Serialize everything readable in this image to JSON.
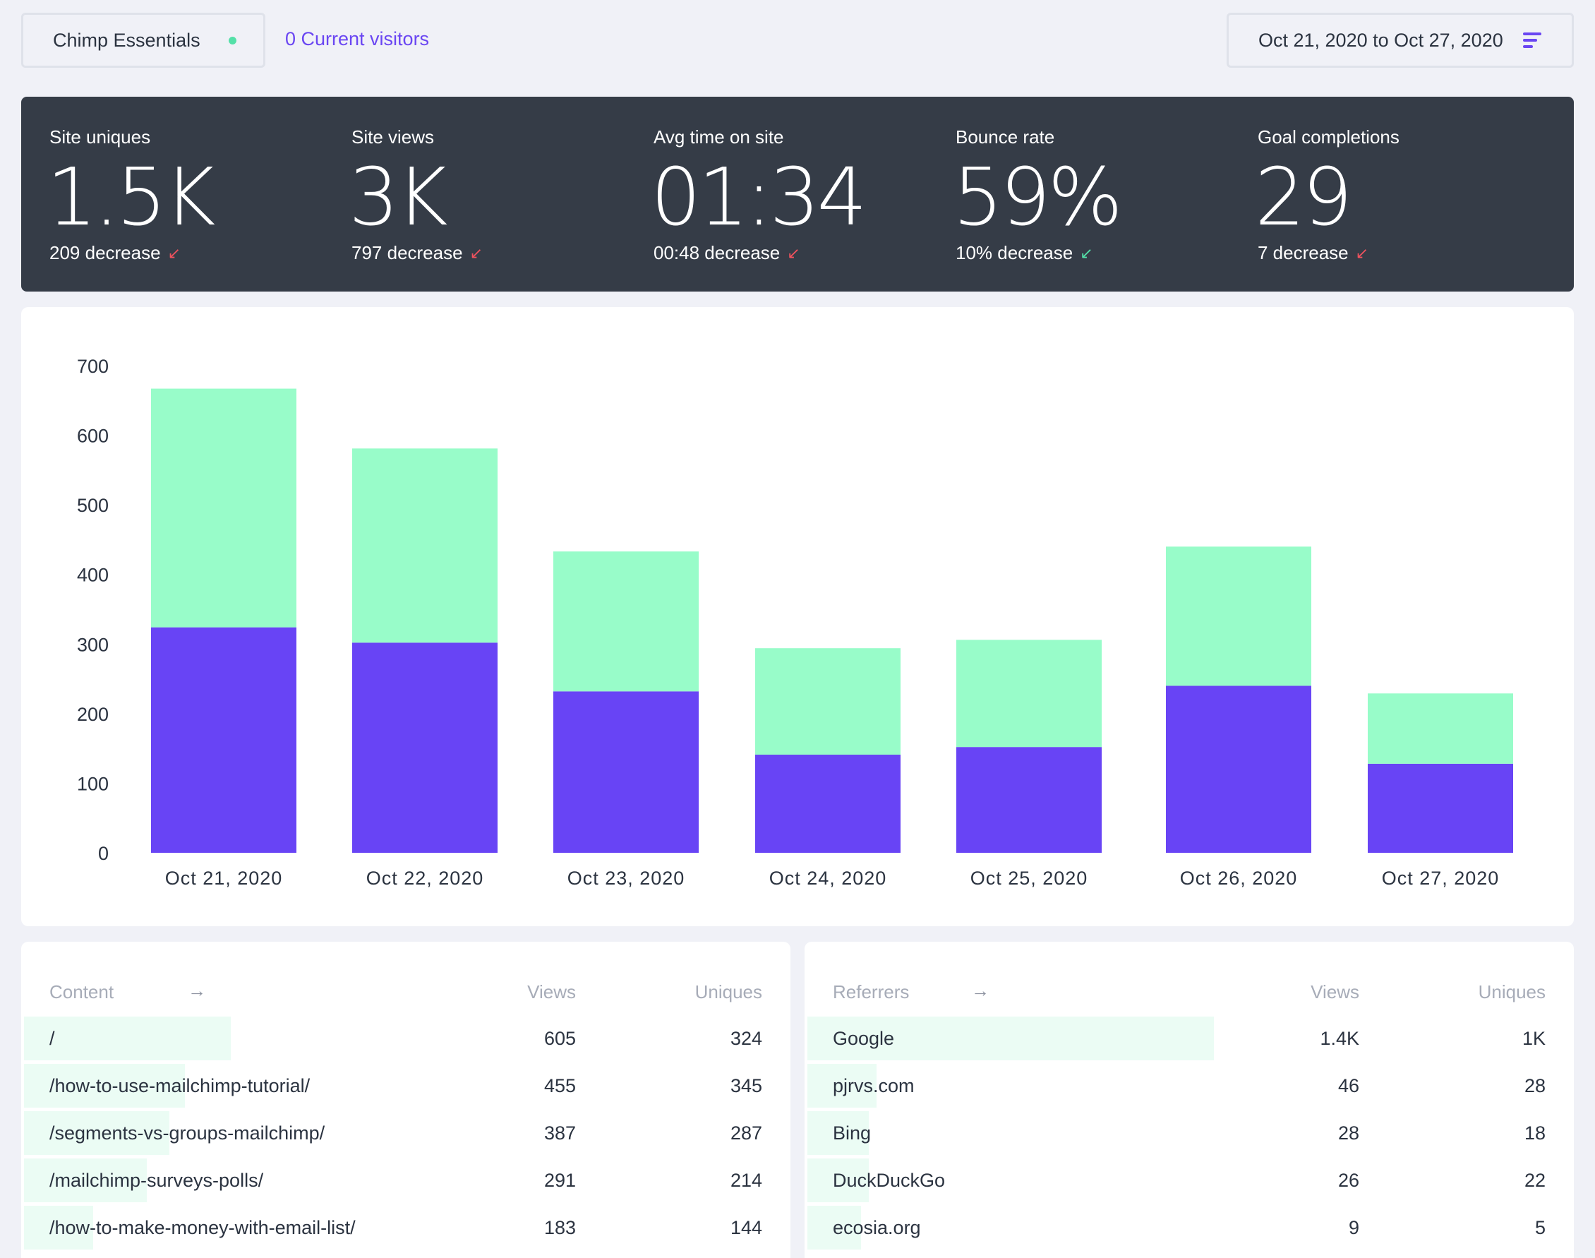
{
  "header": {
    "site_name": "Chimp Essentials",
    "current_visitors": "0 Current visitors",
    "date_range": "Oct 21, 2020 to Oct 27, 2020"
  },
  "stats": [
    {
      "label": "Site uniques",
      "value": "1.5K",
      "delta": "209 decrease",
      "arrow": "↙",
      "arrow_color": "#f0525e"
    },
    {
      "label": "Site views",
      "value": "3K",
      "delta": "797 decrease",
      "arrow": "↙",
      "arrow_color": "#f0525e"
    },
    {
      "label": "Avg time on site",
      "value": "01:34",
      "delta": "00:48 decrease",
      "arrow": "↙",
      "arrow_color": "#f0525e"
    },
    {
      "label": "Bounce rate",
      "value": "59%",
      "delta": "10% decrease",
      "arrow": "↙",
      "arrow_color": "#54e0a8"
    },
    {
      "label": "Goal completions",
      "value": "29",
      "delta": "7 decrease",
      "arrow": "↙",
      "arrow_color": "#f0525e"
    }
  ],
  "chart_data": {
    "type": "bar",
    "stacked": true,
    "categories": [
      "Oct 21, 2020",
      "Oct 22, 2020",
      "Oct 23, 2020",
      "Oct 24, 2020",
      "Oct 25, 2020",
      "Oct 26, 2020",
      "Oct 27, 2020"
    ],
    "series": [
      {
        "values": [
          324,
          302,
          232,
          141,
          152,
          240,
          128
        ],
        "color": "#6844f5"
      },
      {
        "values": [
          343,
          279,
          201,
          153,
          154,
          200,
          101
        ],
        "color": "#98fcc9"
      }
    ],
    "yticks": [
      0,
      100,
      200,
      300,
      400,
      500,
      600,
      700
    ],
    "ylim": [
      0,
      700
    ],
    "legend": "none",
    "grid": false
  },
  "content_table": {
    "headers": {
      "name": "Content",
      "views": "Views",
      "uniques": "Uniques"
    },
    "rows": [
      {
        "name": "/",
        "views": "605",
        "uniques": "324",
        "share": 0.27
      },
      {
        "name": "/how-to-use-mailchimp-tutorial/",
        "views": "455",
        "uniques": "345",
        "share": 0.21
      },
      {
        "name": "/segments-vs-groups-mailchimp/",
        "views": "387",
        "uniques": "287",
        "share": 0.19
      },
      {
        "name": "/mailchimp-surveys-polls/",
        "views": "291",
        "uniques": "214",
        "share": 0.16
      },
      {
        "name": "/how-to-make-money-with-email-list/",
        "views": "183",
        "uniques": "144",
        "share": 0.09
      }
    ]
  },
  "referrers_table": {
    "headers": {
      "name": "Referrers",
      "views": "Views",
      "uniques": "Uniques"
    },
    "rows": [
      {
        "name": "Google",
        "views": "1.4K",
        "uniques": "1K",
        "share": 0.53
      },
      {
        "name": "pjrvs.com",
        "views": "46",
        "uniques": "28",
        "share": 0.09
      },
      {
        "name": "Bing",
        "views": "28",
        "uniques": "18",
        "share": 0.08
      },
      {
        "name": "DuckDuckGo",
        "views": "26",
        "uniques": "22",
        "share": 0.08
      },
      {
        "name": "ecosia.org",
        "views": "9",
        "uniques": "5",
        "share": 0.07
      }
    ]
  }
}
